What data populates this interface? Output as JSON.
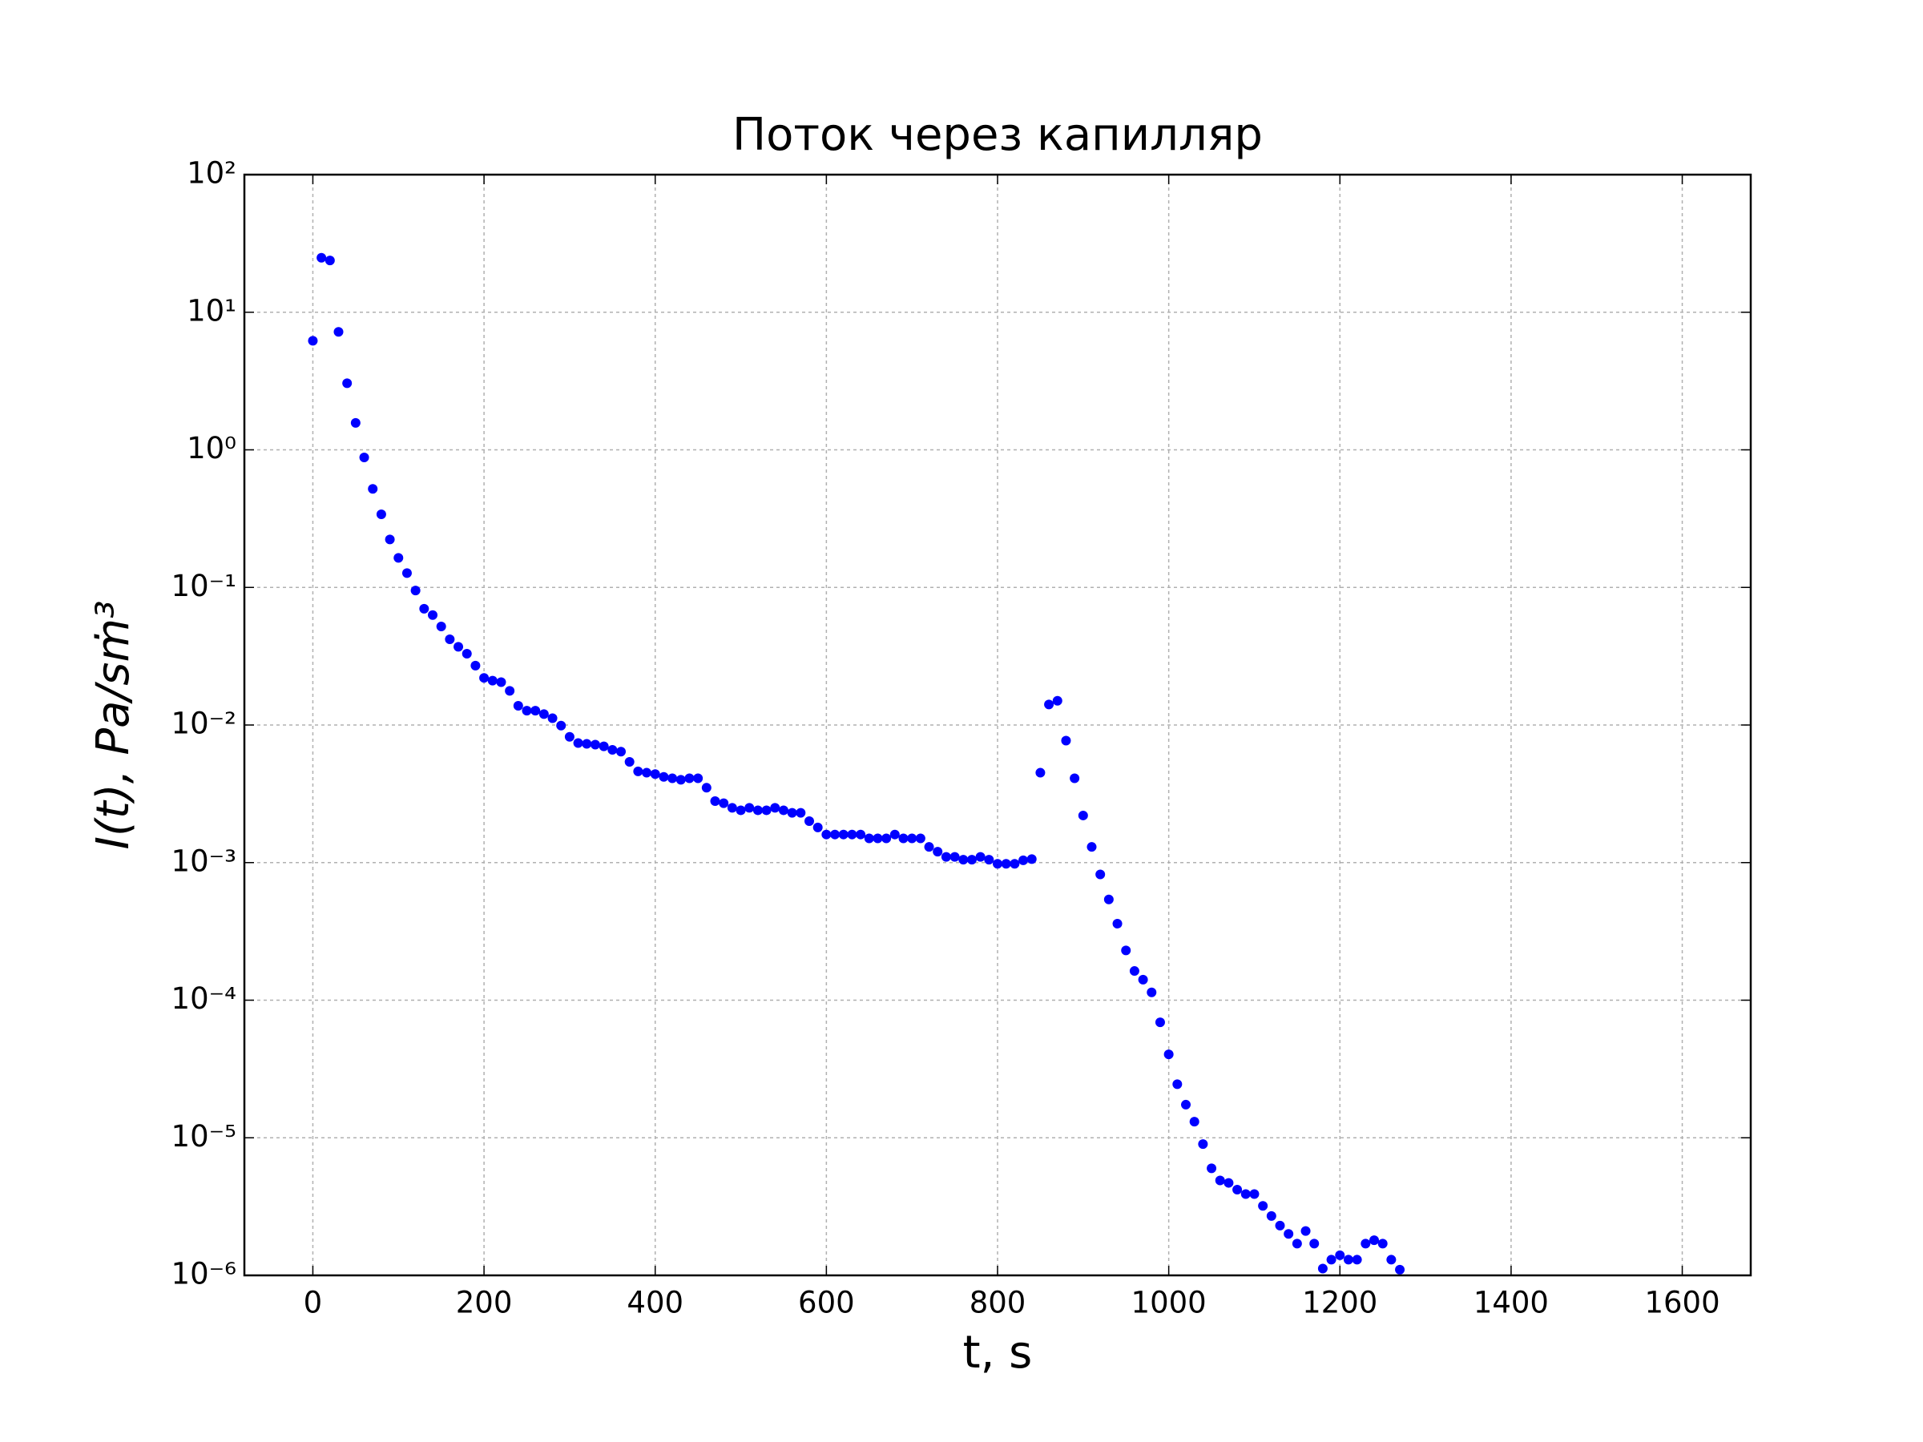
{
  "chart_data": {
    "type": "scatter",
    "title": "Поток через капилляр",
    "xlabel": "t, s",
    "ylabel": "I(t), Pa/sṁ³",
    "log_y": true,
    "grid": true,
    "color": "#0000ff",
    "xlim": [
      -80,
      1680
    ],
    "ylim": [
      1e-06,
      100
    ],
    "xticks": [
      0,
      200,
      400,
      600,
      800,
      1000,
      1200,
      1400,
      1600
    ],
    "yticks": [
      {
        "value": 1e-06,
        "label": "10⁻⁶"
      },
      {
        "value": 1e-05,
        "label": "10⁻⁵"
      },
      {
        "value": 0.0001,
        "label": "10⁻⁴"
      },
      {
        "value": 0.001,
        "label": "10⁻³"
      },
      {
        "value": 0.01,
        "label": "10⁻²"
      },
      {
        "value": 0.1,
        "label": "10⁻¹"
      },
      {
        "value": 1,
        "label": "10⁰"
      },
      {
        "value": 10,
        "label": "10¹"
      },
      {
        "value": 100,
        "label": "10²"
      }
    ],
    "x": [
      0,
      10,
      20,
      30,
      40,
      50,
      60,
      70,
      80,
      90,
      100,
      110,
      120,
      130,
      140,
      150,
      160,
      170,
      180,
      190,
      200,
      210,
      220,
      230,
      240,
      250,
      260,
      270,
      280,
      290,
      300,
      310,
      320,
      330,
      340,
      350,
      360,
      370,
      380,
      390,
      400,
      410,
      420,
      430,
      440,
      450,
      460,
      470,
      480,
      490,
      500,
      510,
      520,
      530,
      540,
      550,
      560,
      570,
      580,
      590,
      600,
      610,
      620,
      630,
      640,
      650,
      660,
      670,
      680,
      690,
      700,
      710,
      720,
      730,
      740,
      750,
      760,
      770,
      780,
      790,
      800,
      810,
      820,
      830,
      840,
      850,
      860,
      870,
      880,
      890,
      900,
      910,
      920,
      930,
      940,
      950,
      960,
      970,
      980,
      990,
      1000,
      1010,
      1020,
      1030,
      1040,
      1050,
      1060,
      1070,
      1080,
      1090,
      1100,
      1110,
      1120,
      1130,
      1140,
      1150,
      1160,
      1170,
      1180,
      1190,
      1200,
      1210,
      1220,
      1230,
      1240,
      1250,
      1260,
      1270
    ],
    "values": [
      6.2,
      24.9,
      23.8,
      7.2,
      3.05,
      1.57,
      0.88,
      0.52,
      0.34,
      0.223,
      0.164,
      0.127,
      0.095,
      0.07,
      0.063,
      0.052,
      0.042,
      0.037,
      0.033,
      0.027,
      0.022,
      0.021,
      0.0205,
      0.0177,
      0.0138,
      0.0127,
      0.0127,
      0.012,
      0.0112,
      0.0099,
      0.0082,
      0.0074,
      0.0073,
      0.0072,
      0.007,
      0.0066,
      0.0064,
      0.0054,
      0.0046,
      0.0045,
      0.0044,
      0.0042,
      0.0041,
      0.004,
      0.0041,
      0.0041,
      0.0035,
      0.0028,
      0.0027,
      0.0025,
      0.0024,
      0.0025,
      0.0024,
      0.0024,
      0.0025,
      0.0024,
      0.0023,
      0.0023,
      0.002,
      0.0018,
      0.0016,
      0.0016,
      0.0016,
      0.0016,
      0.0016,
      0.0015,
      0.0015,
      0.0015,
      0.0016,
      0.0015,
      0.0015,
      0.0015,
      0.0013,
      0.0012,
      0.0011,
      0.0011,
      0.00105,
      0.00105,
      0.0011,
      0.00105,
      0.00098,
      0.00098,
      0.00098,
      0.00104,
      0.00106,
      0.0045,
      0.0141,
      0.015,
      0.0077,
      0.0041,
      0.0022,
      0.0013,
      0.00082,
      0.00054,
      0.00036,
      0.00023,
      0.000163,
      0.000141,
      0.000114,
      6.9e-05,
      4.04e-05,
      2.45e-05,
      1.74e-05,
      1.31e-05,
      9e-06,
      6e-06,
      4.9e-06,
      4.7e-06,
      4.2e-06,
      3.9e-06,
      3.9e-06,
      3.2e-06,
      2.7e-06,
      2.3e-06,
      2e-06,
      1.7e-06,
      2.1e-06,
      1.7e-06,
      1.12e-06,
      1.3e-06,
      1.4e-06,
      1.3e-06,
      1.3e-06,
      1.7e-06,
      1.8e-06,
      1.7e-06,
      1.3e-06,
      1.1e-06
    ]
  }
}
